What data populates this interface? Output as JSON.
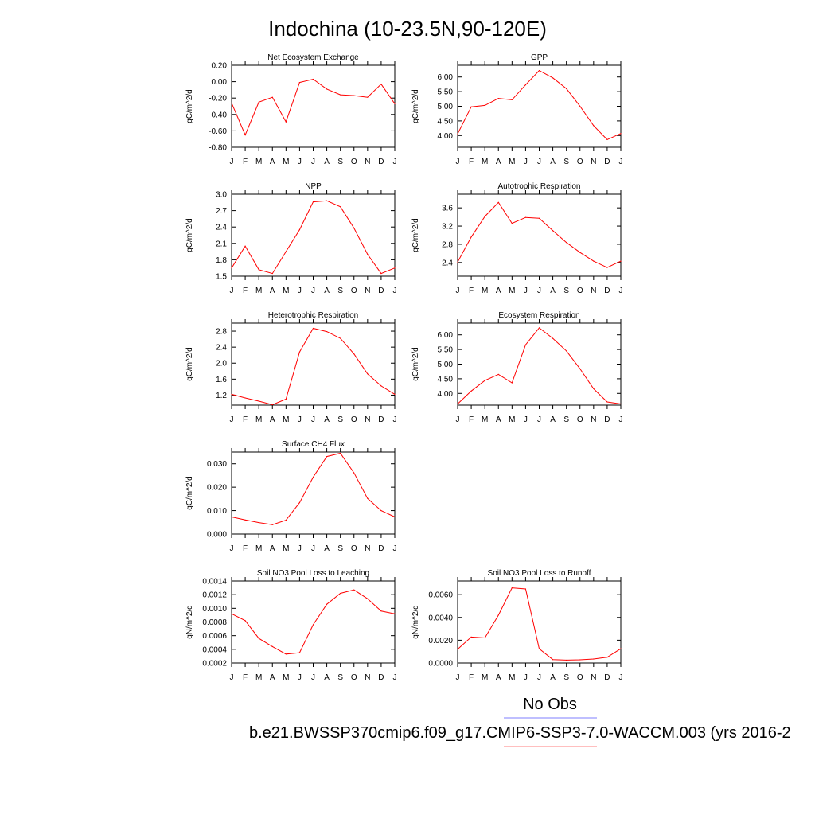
{
  "main_title": "Indochina (10-23.5N,90-120E)",
  "legend": {
    "obs_label": "No Obs",
    "obs_color": "#7f7fff",
    "case_label": "b.e21.BWSSP370cmip6.f09_g17.CMIP6-SSP3-7.0-WACCM.003 (yrs 2016-2",
    "case_color": "#ff7f7f"
  },
  "line_color": "#ff0000",
  "chart_data": [
    {
      "type": "line",
      "title": "Net Ecosystem Exchange",
      "ylabel": "gC/m^2/d",
      "categories": [
        "J",
        "F",
        "M",
        "A",
        "M",
        "J",
        "J",
        "A",
        "S",
        "O",
        "N",
        "D",
        "J"
      ],
      "values": [
        -0.26,
        -0.65,
        -0.25,
        -0.19,
        -0.49,
        -0.01,
        0.03,
        -0.09,
        -0.16,
        -0.17,
        -0.19,
        -0.03,
        -0.27
      ],
      "ylim": [
        -0.8,
        0.2
      ],
      "yticks": [
        "-0.80",
        "-0.60",
        "-0.40",
        "-0.20",
        "0.00",
        "0.20"
      ]
    },
    {
      "type": "line",
      "title": "GPP",
      "ylabel": "gC/m^2/d",
      "categories": [
        "J",
        "F",
        "M",
        "A",
        "M",
        "J",
        "J",
        "A",
        "S",
        "O",
        "N",
        "D",
        "J"
      ],
      "values": [
        4.06,
        4.98,
        5.03,
        5.27,
        5.22,
        5.73,
        6.22,
        5.97,
        5.6,
        5.0,
        4.34,
        3.86,
        4.07
      ],
      "ylim": [
        3.6,
        6.4
      ],
      "yticks": [
        "4.00",
        "4.50",
        "5.00",
        "5.50",
        "6.00"
      ]
    },
    {
      "type": "line",
      "title": "NPP",
      "ylabel": "gC/m^2/d",
      "categories": [
        "J",
        "F",
        "M",
        "A",
        "M",
        "J",
        "J",
        "A",
        "S",
        "O",
        "N",
        "D",
        "J"
      ],
      "values": [
        1.65,
        2.05,
        1.62,
        1.55,
        1.95,
        2.35,
        2.86,
        2.88,
        2.77,
        2.38,
        1.9,
        1.55,
        1.65
      ],
      "ylim": [
        1.5,
        3.0
      ],
      "yticks": [
        "1.5",
        "1.8",
        "2.1",
        "2.4",
        "2.7",
        "3.0"
      ]
    },
    {
      "type": "line",
      "title": "Autotrophic Respiration",
      "ylabel": "gC/m^2/d",
      "categories": [
        "J",
        "F",
        "M",
        "A",
        "M",
        "J",
        "J",
        "A",
        "S",
        "O",
        "N",
        "D",
        "J"
      ],
      "values": [
        2.41,
        2.96,
        3.41,
        3.72,
        3.26,
        3.39,
        3.37,
        3.1,
        2.84,
        2.62,
        2.43,
        2.29,
        2.43
      ],
      "ylim": [
        2.1,
        3.9
      ],
      "yticks": [
        "2.4",
        "2.8",
        "3.2",
        "3.6"
      ]
    },
    {
      "type": "line",
      "title": "Heterotrophic Respiration",
      "ylabel": "gC/m^2/d",
      "categories": [
        "J",
        "F",
        "M",
        "A",
        "M",
        "J",
        "J",
        "A",
        "S",
        "O",
        "N",
        "D",
        "J"
      ],
      "values": [
        1.22,
        1.13,
        1.05,
        0.96,
        1.1,
        2.28,
        2.87,
        2.79,
        2.62,
        2.23,
        1.73,
        1.43,
        1.22
      ],
      "ylim": [
        0.95,
        3.0
      ],
      "yticks": [
        "1.2",
        "1.6",
        "2.0",
        "2.4",
        "2.8"
      ]
    },
    {
      "type": "line",
      "title": "Ecosystem Respiration",
      "ylabel": "gC/m^2/d",
      "categories": [
        "J",
        "F",
        "M",
        "A",
        "M",
        "J",
        "J",
        "A",
        "S",
        "O",
        "N",
        "D",
        "J"
      ],
      "values": [
        3.64,
        4.08,
        4.44,
        4.65,
        4.36,
        5.66,
        6.24,
        5.88,
        5.45,
        4.84,
        4.16,
        3.71,
        3.64
      ],
      "ylim": [
        3.6,
        6.4
      ],
      "yticks": [
        "4.00",
        "4.50",
        "5.00",
        "5.50",
        "6.00"
      ]
    },
    {
      "type": "line",
      "title": "Surface CH4 Flux",
      "ylabel": "gC/m^2/d",
      "categories": [
        "J",
        "F",
        "M",
        "A",
        "M",
        "J",
        "J",
        "A",
        "S",
        "O",
        "N",
        "D",
        "J"
      ],
      "values": [
        0.0073,
        0.006,
        0.0049,
        0.004,
        0.0059,
        0.0134,
        0.0243,
        0.0331,
        0.0345,
        0.0261,
        0.0152,
        0.01,
        0.0073
      ],
      "ylim": [
        0.0,
        0.035
      ],
      "yticks": [
        "0.000",
        "0.010",
        "0.020",
        "0.030"
      ]
    },
    {
      "type": "line",
      "title": "Soil NO3 Pool Loss to Leaching",
      "ylabel": "gN/m^2/d",
      "categories": [
        "J",
        "F",
        "M",
        "A",
        "M",
        "J",
        "J",
        "A",
        "S",
        "O",
        "N",
        "D",
        "J"
      ],
      "values": [
        0.00092,
        0.00082,
        0.00056,
        0.00044,
        0.00033,
        0.00035,
        0.00076,
        0.00106,
        0.00122,
        0.00127,
        0.00114,
        0.00096,
        0.00092
      ],
      "ylim": [
        0.0002,
        0.0014
      ],
      "yticks": [
        "0.0002",
        "0.0004",
        "0.0006",
        "0.0008",
        "0.0010",
        "0.0012",
        "0.0014"
      ]
    },
    {
      "type": "line",
      "title": "Soil NO3 Pool Loss to Runoff",
      "ylabel": "gN/m^2/d",
      "categories": [
        "J",
        "F",
        "M",
        "A",
        "M",
        "J",
        "J",
        "A",
        "S",
        "O",
        "N",
        "D",
        "J"
      ],
      "values": [
        0.0012,
        0.00228,
        0.0022,
        0.0042,
        0.0066,
        0.0065,
        0.00125,
        0.0003,
        0.00025,
        0.00028,
        0.00035,
        0.0005,
        0.00125
      ],
      "ylim": [
        0.0,
        0.0072
      ],
      "yticks": [
        "0.0000",
        "0.0020",
        "0.0040",
        "0.0060"
      ]
    }
  ]
}
